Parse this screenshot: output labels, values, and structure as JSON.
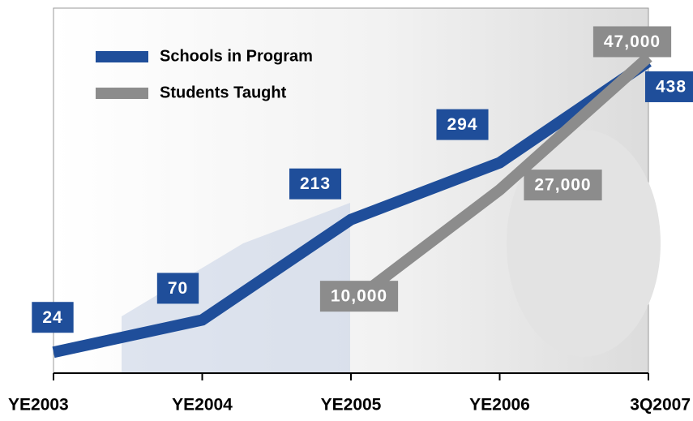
{
  "chart_data": {
    "type": "line",
    "categories": [
      "YE2003",
      "YE2004",
      "YE2005",
      "YE2006",
      "3Q2007"
    ],
    "series": [
      {
        "name": "Schools in Program",
        "color": "#1f4e9a",
        "values": [
          24,
          70,
          213,
          294,
          438
        ]
      },
      {
        "name": "Students Taught",
        "color": "#8c8c8c",
        "axis": "y2",
        "values": [
          null,
          null,
          10000,
          27000,
          47000
        ],
        "value_labels": [
          null,
          null,
          "10,000",
          "27,000",
          "47,000"
        ]
      }
    ],
    "ylim": [
      0,
      520
    ],
    "y2lim": [
      0,
      55000
    ],
    "legend": "upper left"
  }
}
